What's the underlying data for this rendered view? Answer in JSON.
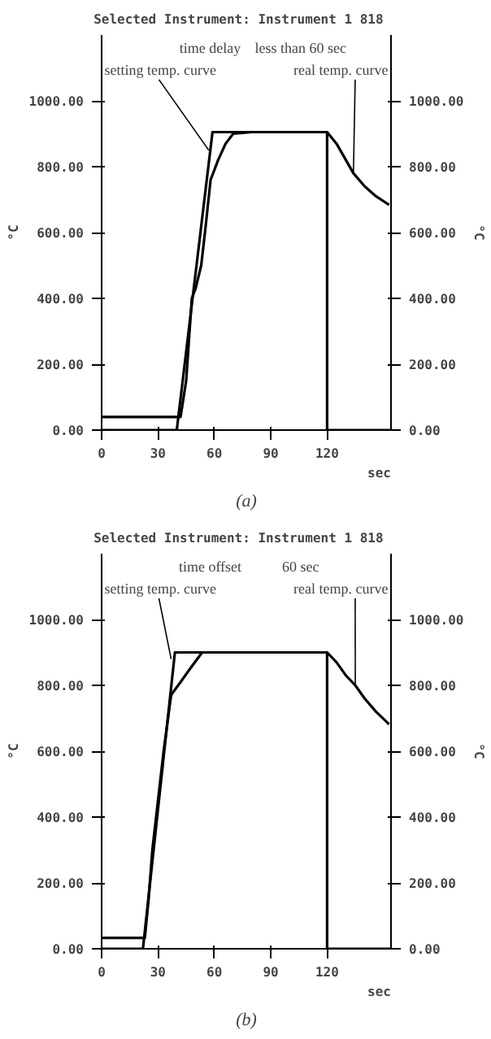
{
  "chart_data": [
    {
      "type": "line",
      "title": "Selected Instrument:  Instrument 1  818",
      "xlabel": "sec",
      "ylabel": "°C",
      "y2label": "°C",
      "xlim": [
        0,
        154
      ],
      "ylim": [
        0,
        1200
      ],
      "y2lim": [
        0,
        1200
      ],
      "xticks": [
        0,
        30,
        60,
        90,
        120
      ],
      "yticks": [
        {
          "value": 0,
          "label": "0.00"
        },
        {
          "value": 200,
          "label": "200.00"
        },
        {
          "value": 400,
          "label": "400.00"
        },
        {
          "value": 600,
          "label": "600.00"
        },
        {
          "value": 800,
          "label": "800.00"
        },
        {
          "value": 1000,
          "label": "1000.00"
        }
      ],
      "y2ticks": [
        {
          "value": 0,
          "label": "0.00"
        },
        {
          "value": 200,
          "label": "200.00"
        },
        {
          "value": 400,
          "label": "400.00"
        },
        {
          "value": 600,
          "label": "600.00"
        },
        {
          "value": 800,
          "label": "800.00"
        },
        {
          "value": 1000,
          "label": "1000.00"
        }
      ],
      "grid": false,
      "series": [
        {
          "color": "#000000",
          "x": [
            0,
            40,
            59,
            120,
            120,
            154
          ],
          "values": [
            0,
            0,
            905,
            905,
            0,
            0
          ]
        },
        {
          "color": "#000000",
          "x": [
            0,
            42,
            45,
            48,
            50,
            53,
            55,
            58,
            62,
            66,
            70,
            80,
            100,
            120,
            125,
            130,
            134,
            140,
            146,
            153
          ],
          "values": [
            40,
            40,
            150,
            400,
            430,
            500,
            600,
            760,
            820,
            870,
            900,
            905,
            905,
            905,
            870,
            820,
            780,
            740,
            710,
            684
          ]
        }
      ],
      "annotations": [
        "time delay",
        "less than 60 sec",
        {
          "text": "setting temp. curve",
          "x": 57,
          "y": 850
        },
        {
          "text": "real temp. curve",
          "x": 134,
          "y": 780
        },
        "(a)"
      ]
    },
    {
      "type": "line",
      "title": "Selected Instrument:  Instrument 1  818",
      "xlabel": "sec",
      "ylabel": "°C",
      "y2label": "°C",
      "xlim": [
        0,
        154
      ],
      "ylim": [
        0,
        1200
      ],
      "y2lim": [
        0,
        1200
      ],
      "xticks": [
        0,
        30,
        60,
        90,
        120
      ],
      "yticks": [
        {
          "value": 0,
          "label": "0.00"
        },
        {
          "value": 200,
          "label": "200.00"
        },
        {
          "value": 400,
          "label": "400.00"
        },
        {
          "value": 600,
          "label": "600.00"
        },
        {
          "value": 800,
          "label": "800.00"
        },
        {
          "value": 1000,
          "label": "1000.00"
        }
      ],
      "y2ticks": [
        {
          "value": 0,
          "label": "0.00"
        },
        {
          "value": 200,
          "label": "200.00"
        },
        {
          "value": 400,
          "label": "400.00"
        },
        {
          "value": 600,
          "label": "600.00"
        },
        {
          "value": 800,
          "label": "800.00"
        },
        {
          "value": 1000,
          "label": "1000.00"
        }
      ],
      "grid": false,
      "series": [
        {
          "color": "#000000",
          "x": [
            0,
            22,
            39,
            120,
            120,
            154
          ],
          "values": [
            0,
            0,
            900,
            900,
            0,
            0
          ]
        },
        {
          "color": "#000000",
          "x": [
            0,
            23,
            25,
            27,
            29,
            33,
            37,
            42,
            47,
            53.5,
            80,
            120,
            125,
            130,
            135,
            140,
            146,
            153
          ],
          "values": [
            33,
            33,
            150,
            300,
            400,
            600,
            771,
            810,
            850,
            900,
            900,
            900,
            870,
            830,
            800,
            760,
            720,
            682
          ]
        }
      ],
      "annotations": [
        "time offset",
        "60 sec",
        {
          "text": "setting temp. curve",
          "x": 37,
          "y": 880
        },
        {
          "text": "real temp. curve",
          "x": 135,
          "y": 800
        },
        "(b)"
      ]
    }
  ]
}
